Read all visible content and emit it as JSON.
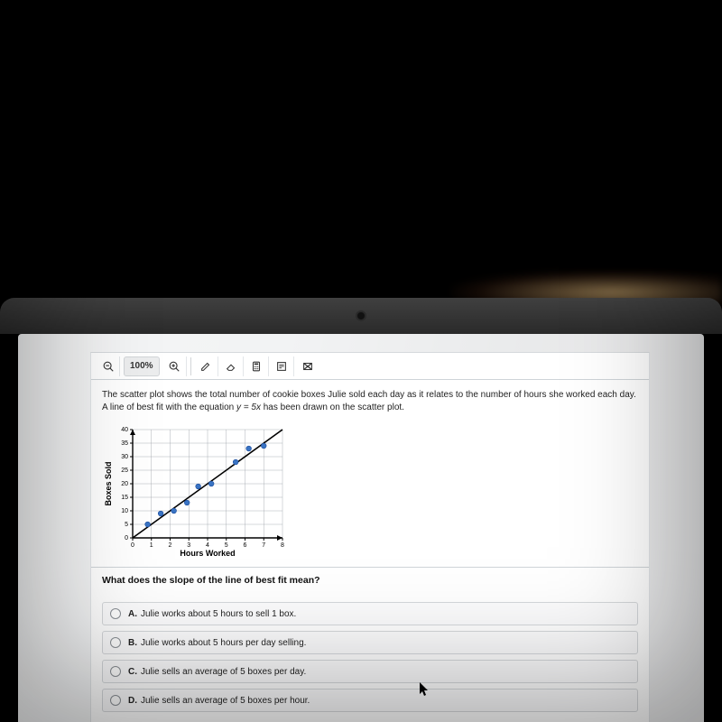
{
  "toolbar": {
    "zoom_label": "100%"
  },
  "question": {
    "intro_a": "The scatter plot shows the total number of cookie boxes Julie sold each day as it relates to the number of hours she worked each day. A line of best fit with the equation ",
    "equation": "y = 5x",
    "intro_b": " has been drawn on the scatter plot."
  },
  "chart": {
    "type": "scatter",
    "xlabel": "Hours Worked",
    "ylabel": "Boxes Sold",
    "xlim": [
      0,
      8
    ],
    "ylim": [
      0,
      40
    ],
    "xtick_step": 1,
    "ytick_step": 5,
    "axis_color": "#000000",
    "grid_color": "#9aa0a6",
    "background_color": "#ffffff",
    "marker_color": "#3a74c4",
    "marker_size": 4,
    "line_color": "#000000",
    "line_width": 1.6,
    "label_fontsize": 9,
    "tick_fontsize": 7,
    "bestfit": {
      "slope": 5,
      "intercept": 0
    },
    "points": [
      {
        "x": 0.8,
        "y": 5
      },
      {
        "x": 1.5,
        "y": 9
      },
      {
        "x": 2.2,
        "y": 10
      },
      {
        "x": 2.9,
        "y": 13
      },
      {
        "x": 3.5,
        "y": 19
      },
      {
        "x": 4.2,
        "y": 20
      },
      {
        "x": 5.5,
        "y": 28
      },
      {
        "x": 6.2,
        "y": 33
      },
      {
        "x": 7.0,
        "y": 34
      }
    ]
  },
  "prompt": "What does the slope of the line of best fit mean?",
  "answers": [
    {
      "letter": "A.",
      "text": "Julie works about 5 hours to sell 1 box."
    },
    {
      "letter": "B.",
      "text": "Julie works about 5 hours per day selling."
    },
    {
      "letter": "C.",
      "text": "Julie sells an average of 5 boxes per day."
    },
    {
      "letter": "D.",
      "text": "Julie sells an average of 5 boxes per hour."
    }
  ],
  "colors": {
    "page_bg": "#f2f3f4",
    "card_bg": "#ffffff",
    "border": "#d6d9dc"
  }
}
